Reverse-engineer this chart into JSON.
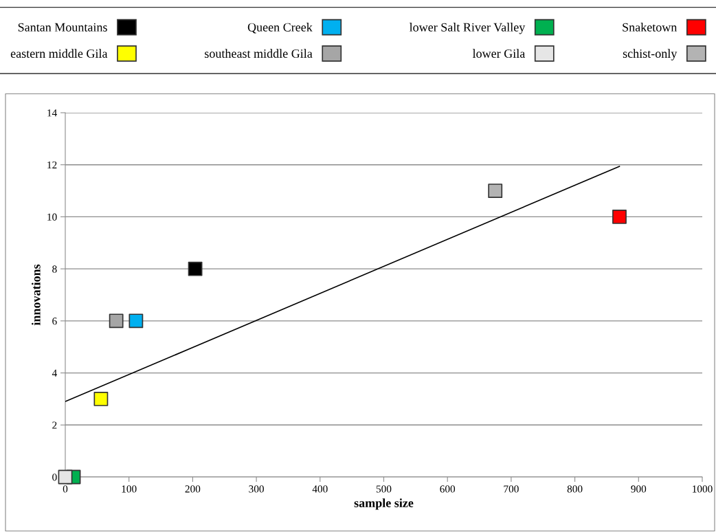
{
  "chart_data": {
    "type": "scatter",
    "xlabel": "sample size",
    "ylabel": "innovations",
    "xlim": [
      0,
      1000
    ],
    "xticks": [
      0,
      100,
      200,
      300,
      400,
      500,
      600,
      700,
      800,
      900,
      1000
    ],
    "ylim": [
      0,
      14
    ],
    "yticks": [
      0,
      2,
      4,
      6,
      8,
      10,
      12,
      14
    ],
    "grid": "y",
    "legend": "top",
    "marker": "square",
    "series": [
      {
        "name": "Santan Mountains",
        "color": "#000000",
        "x": [
          204
        ],
        "values": [
          8
        ]
      },
      {
        "name": "Queen Creek",
        "color": "#00b0f0",
        "x": [
          111
        ],
        "values": [
          6
        ]
      },
      {
        "name": "lower Salt River Valley",
        "color": "#00b050",
        "x": [
          13
        ],
        "values": [
          0
        ]
      },
      {
        "name": "Snaketown",
        "color": "#ff0000",
        "x": [
          870
        ],
        "values": [
          10
        ]
      },
      {
        "name": "eastern middle Gila",
        "color": "#ffff00",
        "x": [
          56
        ],
        "values": [
          3
        ]
      },
      {
        "name": "southeast middle Gila",
        "color": "#a6a6a6",
        "x": [
          80
        ],
        "values": [
          6
        ]
      },
      {
        "name": "lower Gila",
        "color": "#e6e6e6",
        "x": [
          0
        ],
        "values": [
          0
        ]
      },
      {
        "name": "schist-only",
        "color": "#b3b3b3",
        "x": [
          675
        ],
        "values": [
          11
        ]
      },
      {
        "type": "line",
        "marker": "none",
        "color": "#000000",
        "x": [
          0,
          870
        ],
        "values": [
          2.9,
          11.94
        ]
      }
    ]
  }
}
